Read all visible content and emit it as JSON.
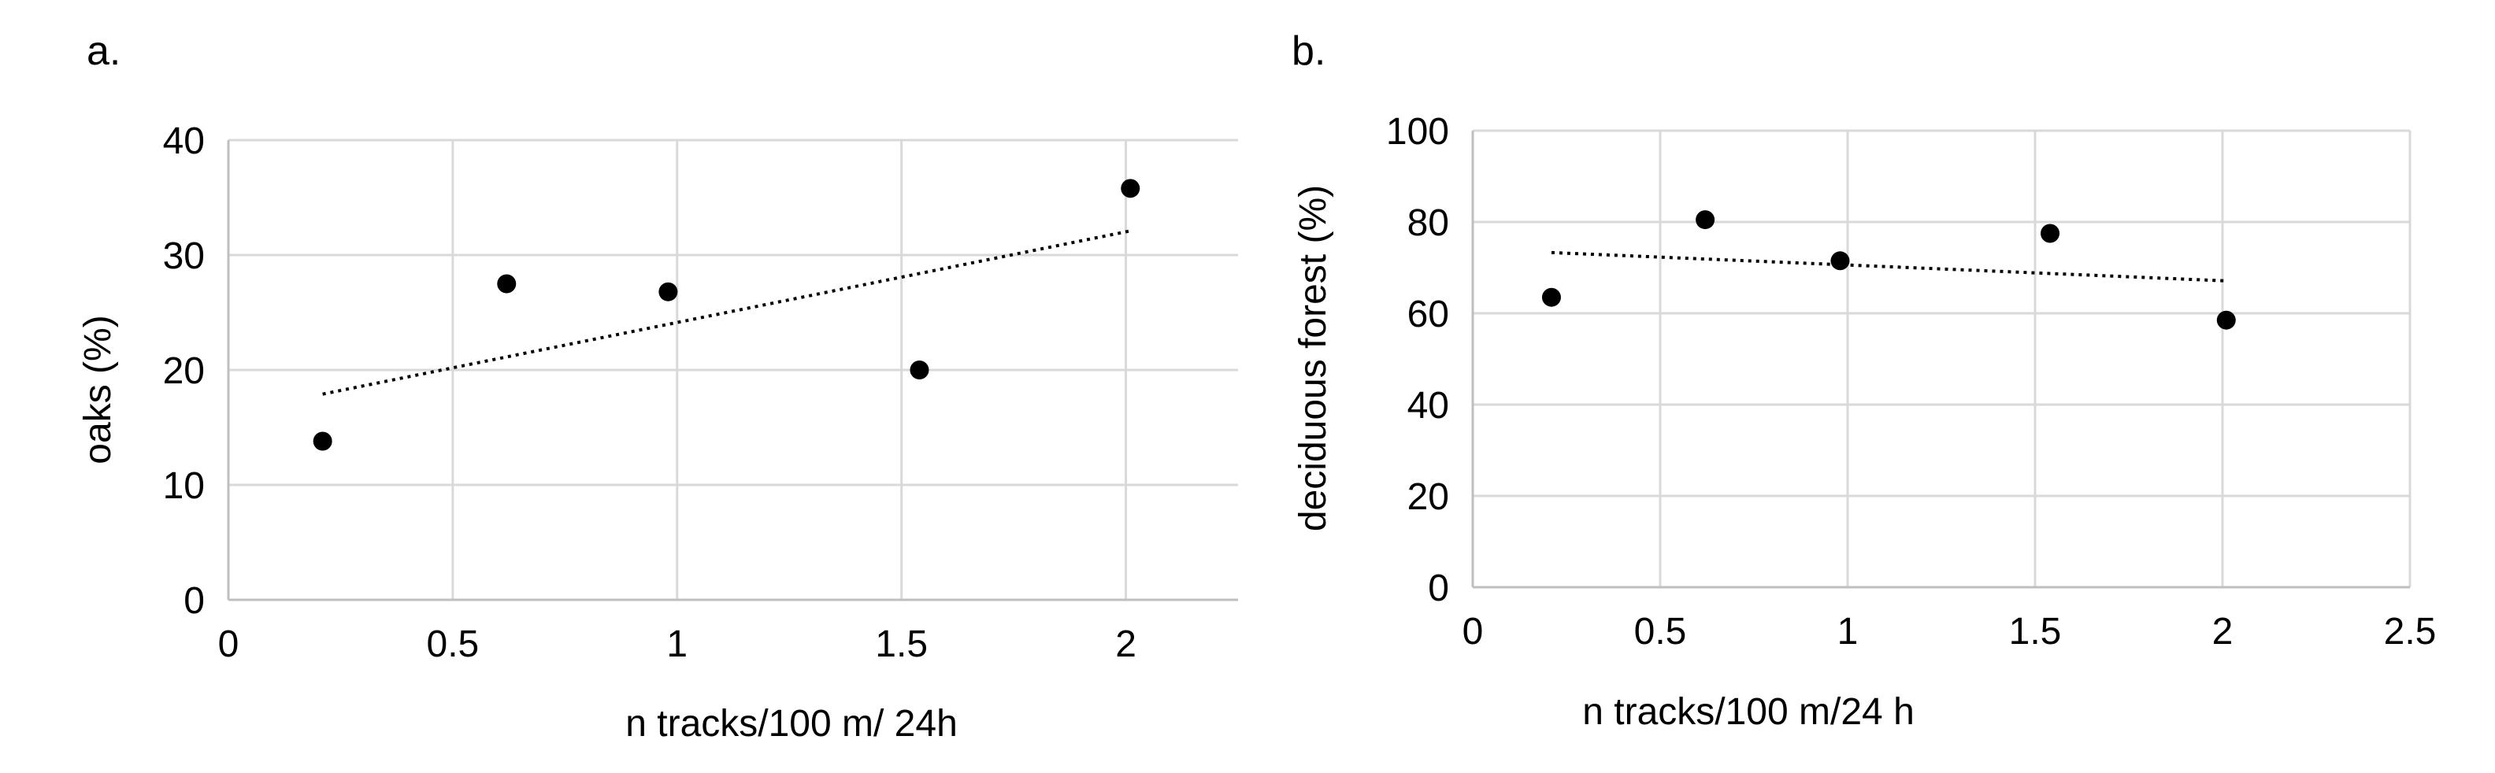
{
  "chart_data": [
    {
      "panel_label": "a.",
      "type": "scatter",
      "xlabel": "n tracks/100 m/ 24h",
      "ylabel": "oaks (%)",
      "xlim": [
        0,
        2.25
      ],
      "ylim": [
        0,
        40
      ],
      "x_ticks": [
        0,
        0.5,
        1,
        1.5,
        2
      ],
      "x_tick_labels": [
        "0",
        "0.5",
        "1",
        "1.5",
        "2"
      ],
      "y_ticks": [
        0,
        10,
        20,
        30,
        40
      ],
      "y_tick_labels": [
        "0",
        "10",
        "20",
        "30",
        "40"
      ],
      "grid": true,
      "series": [
        {
          "x": [
            0.21,
            0.62,
            0.98,
            1.54,
            2.01
          ],
          "y": [
            13.8,
            27.5,
            26.8,
            20.0,
            35.8
          ]
        }
      ],
      "trendline": {
        "style": "dotted",
        "x": [
          0.21,
          2.01
        ],
        "y": [
          17.9,
          32.1
        ]
      },
      "colors": {
        "points": "#000000",
        "grid": "#d9d9d9",
        "axis": "#bfbfbf"
      }
    },
    {
      "panel_label": "b.",
      "type": "scatter",
      "xlabel": "n tracks/100 m/24 h",
      "ylabel": "deciduous forest (%)",
      "xlim": [
        0,
        2.5
      ],
      "ylim": [
        0,
        100
      ],
      "x_ticks": [
        0,
        0.5,
        1,
        1.5,
        2,
        2.5
      ],
      "x_tick_labels": [
        "0",
        "0.5",
        "1",
        "1.5",
        "2",
        "2.5"
      ],
      "y_ticks": [
        0,
        20,
        40,
        60,
        80,
        100
      ],
      "y_tick_labels": [
        "0",
        "20",
        "40",
        "60",
        "80",
        "100"
      ],
      "grid": true,
      "series": [
        {
          "x": [
            0.21,
            0.62,
            0.98,
            1.54,
            2.01
          ],
          "y": [
            63.5,
            80.5,
            71.5,
            77.5,
            58.5
          ]
        }
      ],
      "trendline": {
        "style": "dotted",
        "x": [
          0.21,
          2.01
        ],
        "y": [
          73.3,
          67.1
        ]
      },
      "colors": {
        "points": "#000000",
        "grid": "#d9d9d9",
        "axis": "#bfbfbf"
      }
    }
  ]
}
